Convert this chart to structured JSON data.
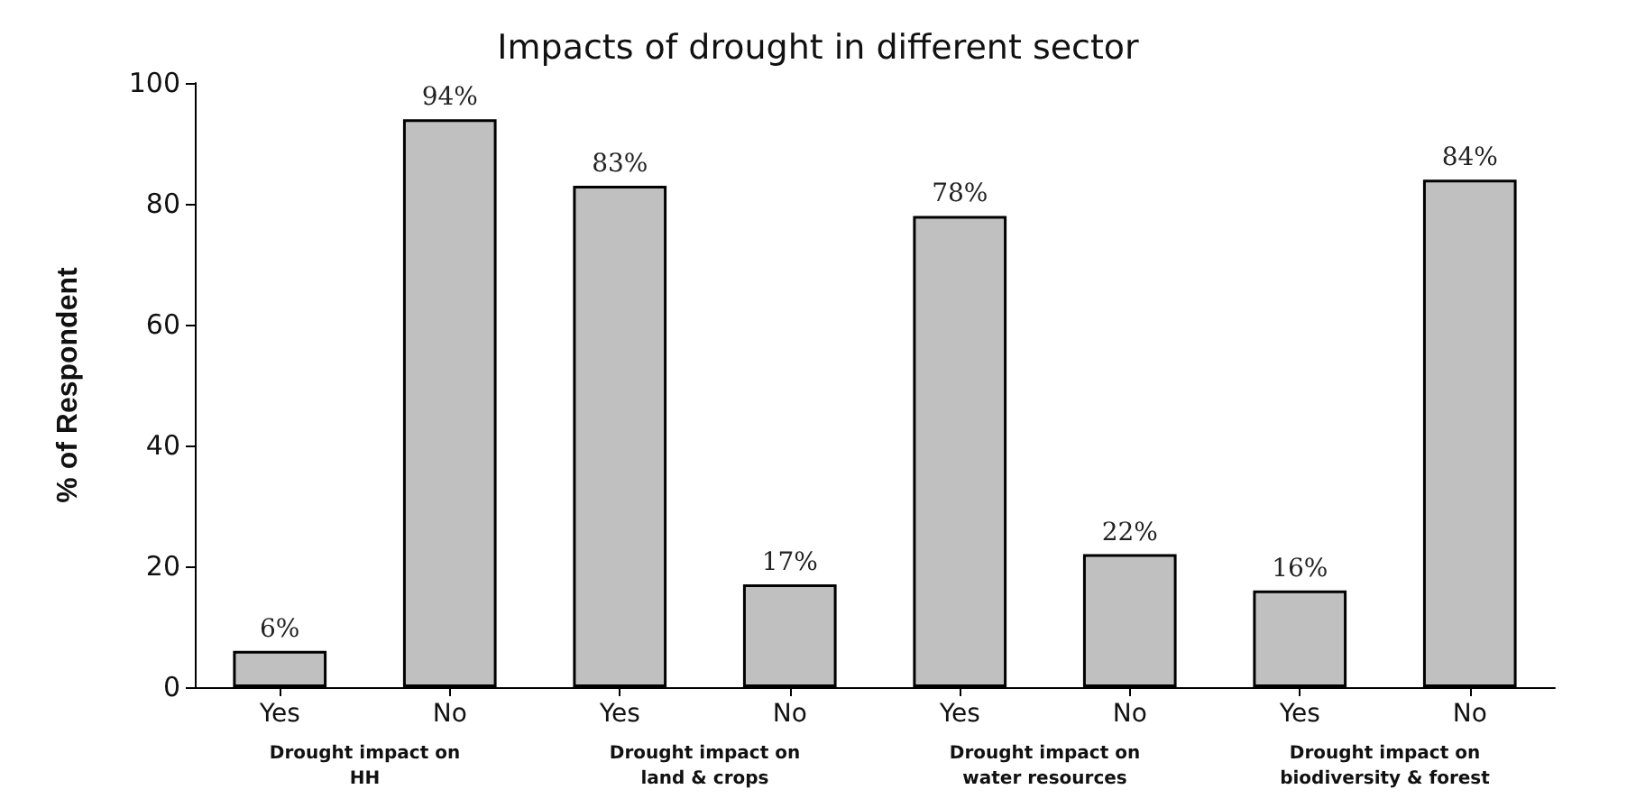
{
  "chart_data": {
    "type": "bar",
    "title": "Impacts of drought in different sector",
    "ylabel": "% of Respondent",
    "categories": [
      "Yes",
      "No",
      "Yes",
      "No",
      "Yes",
      "No",
      "Yes",
      "No"
    ],
    "values": [
      6,
      94,
      83,
      17,
      78,
      22,
      16,
      84
    ],
    "value_labels": [
      "6%",
      "94%",
      "83%",
      "17%",
      "78%",
      "22%",
      "16%",
      "84%"
    ],
    "color": "#c0c0c0",
    "ylim": [
      0,
      100
    ],
    "yticks": [
      0,
      20,
      40,
      60,
      80,
      100
    ],
    "grid": false,
    "annotations": [
      "Drought impact on\nHH",
      "Drought impact on\nland & crops",
      "Drought impact on\nwater resources",
      "Drought impact on\nbiodiversity & forest"
    ]
  }
}
